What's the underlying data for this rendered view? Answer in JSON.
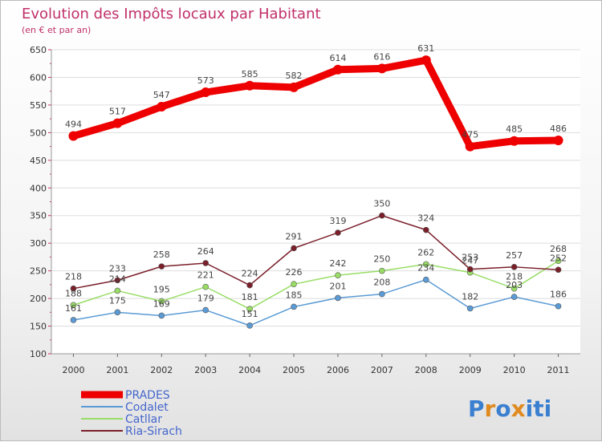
{
  "chart_data": {
    "type": "line",
    "title": "Evolution des Impôts locaux par Habitant",
    "subtitle": "(en € et par an)",
    "x": [
      "2000",
      "2001",
      "2002",
      "2003",
      "2004",
      "2005",
      "2006",
      "2007",
      "2008",
      "2009",
      "2010",
      "2011"
    ],
    "ylim": [
      100,
      650
    ],
    "yticks": [
      "100",
      "150",
      "200",
      "250",
      "300",
      "350",
      "400",
      "450",
      "500",
      "550",
      "600",
      "650"
    ],
    "series": [
      {
        "name": "PRADES",
        "color": "#ee0000",
        "values": [
          494,
          517,
          547,
          573,
          585,
          582,
          614,
          616,
          631,
          475,
          485,
          486
        ]
      },
      {
        "name": "Codalet",
        "color": "#5b9bd5",
        "values": [
          161,
          175,
          169,
          179,
          151,
          185,
          201,
          208,
          234,
          182,
          203,
          186
        ]
      },
      {
        "name": "Catllar",
        "color": "#99dd66",
        "values": [
          188,
          214,
          195,
          221,
          181,
          226,
          242,
          250,
          262,
          247,
          218,
          268
        ]
      },
      {
        "name": "Ria-Sirach",
        "color": "#7a1f2a",
        "values": [
          218,
          233,
          258,
          264,
          224,
          291,
          319,
          350,
          324,
          253,
          257,
          252
        ]
      }
    ]
  },
  "brand": {
    "letters": [
      "P",
      "r",
      "o",
      "x",
      "i",
      "t",
      "i"
    ],
    "colors": [
      "#3a7fd0",
      "#e08a20",
      "#3a7fd0",
      "#e08a20",
      "#3a7fd0",
      "#3a7fd0",
      "#3a7fd0"
    ]
  }
}
